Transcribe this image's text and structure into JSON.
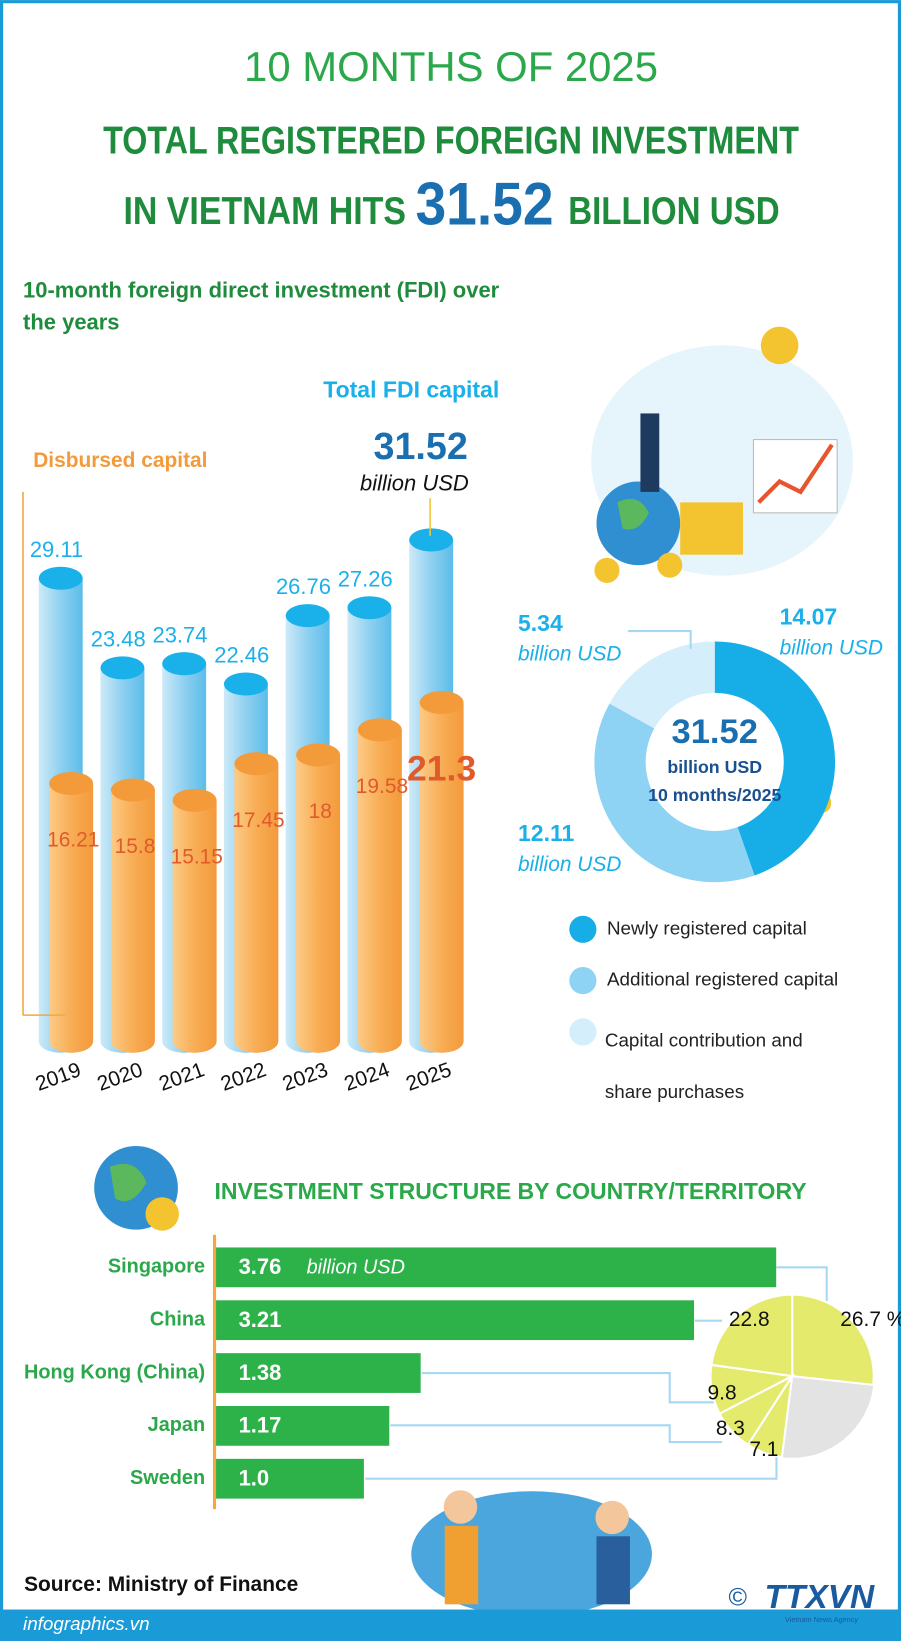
{
  "header": {
    "kicker": "10 MONTHS OF 2025",
    "title_line1": "TOTAL REGISTERED FOREIGN INVESTMENT",
    "title_line2_pre": "IN VIETNAM HITS",
    "title_value": 31.52,
    "title_line2_post": "BILLION USD"
  },
  "chart_data": [
    {
      "type": "cylinder",
      "title": "10-month foreign direct investment (FDI) over the years",
      "unit": "billion USD",
      "categories": [
        "2019",
        "2020",
        "2021",
        "2022",
        "2023",
        "2024",
        "2025"
      ],
      "series": [
        {
          "name": "Total FDI capital",
          "color": "#5bc0eb",
          "values": [
            29.11,
            23.48,
            23.74,
            22.46,
            26.76,
            27.26,
            31.52
          ]
        },
        {
          "name": "Disbursed capital",
          "color": "#f7a53f",
          "values": [
            16.21,
            15.8,
            15.15,
            17.45,
            18,
            19.58,
            21.3
          ]
        }
      ],
      "ylim": [
        0,
        35
      ]
    },
    {
      "type": "donut",
      "center_value": 31.52,
      "center_unit": "billion USD",
      "center_note": "10 months/2025",
      "unit": "billion USD",
      "labels": [
        "Newly registered capital",
        "Additional registered capital",
        "Capital contribution and share purchases"
      ],
      "values": [
        14.07,
        12.11,
        5.34
      ],
      "colors": [
        "#17aee8",
        "#8fd3f4",
        "#d4effb"
      ]
    },
    {
      "type": "hbar",
      "title": "INVESTMENT STRUCTURE BY COUNTRY/TERRITORY",
      "unit": "billion USD",
      "color": "#2db24a",
      "categories": [
        "Singapore",
        "China",
        "Hong Kong (China)",
        "Japan",
        "Sweden"
      ],
      "values": [
        3.76,
        3.21,
        1.38,
        1.17,
        1.0
      ],
      "value_labels": [
        "3.76",
        "3.21",
        "1.38",
        "1.17",
        "1.0"
      ],
      "xlim": [
        0,
        4
      ]
    },
    {
      "type": "pie",
      "values": [
        26.7,
        22.8,
        9.8,
        8.3,
        7.1
      ],
      "value_labels": [
        "26.7 %",
        "22.8",
        "9.8",
        "8.3",
        "7.1"
      ],
      "color": "#e4ea6c",
      "rest_color": "#e3e3e3"
    }
  ],
  "footer": {
    "source": "Source: Ministry of Finance",
    "site": "infographics.vn",
    "copyright": "©",
    "logo": "TTXVN",
    "agency": "Vietnam News Agency"
  }
}
